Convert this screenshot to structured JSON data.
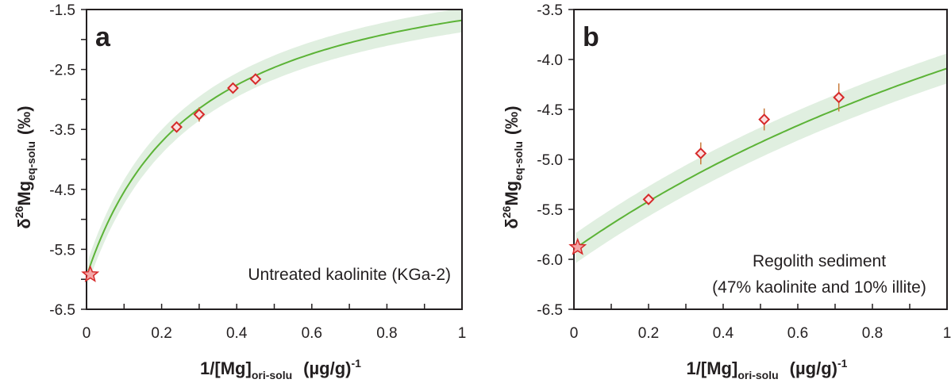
{
  "chart_data": [
    {
      "type": "scatter",
      "panel_label": "a",
      "annotation": [
        "Untreated kaolinite (KGa-2)"
      ],
      "xlabel": {
        "main": "1/[Mg]",
        "sub": "ori-solu",
        "unit": "(µg/g)",
        "sup": "-1"
      },
      "ylabel": {
        "prefix": "δ",
        "sup": "26",
        "main": "Mg",
        "sub": "eq-solu",
        "unit": "(‰)"
      },
      "xlim": [
        0,
        1
      ],
      "ylim": [
        -6.5,
        -1.5
      ],
      "xticks": [
        0,
        0.2,
        0.4,
        0.6,
        0.8,
        1
      ],
      "xtick_labels": [
        "0",
        "0.2",
        "0.4",
        "0.6",
        "0.8",
        "1"
      ],
      "xminor": [
        0.1,
        0.3,
        0.5,
        0.7,
        0.9
      ],
      "yticks": [
        -1.5,
        -2.5,
        -3.5,
        -4.5,
        -5.5,
        -6.5
      ],
      "ytick_labels": [
        "-1.5",
        "-2.5",
        "-3.5",
        "-4.5",
        "-5.5",
        "-6.5"
      ],
      "yminor": [
        -2.0,
        -3.0,
        -4.0,
        -5.0,
        -6.0
      ],
      "points": [
        {
          "x": 0.24,
          "y": -3.46,
          "err": 0.05
        },
        {
          "x": 0.3,
          "y": -3.25,
          "err": 0.12
        },
        {
          "x": 0.39,
          "y": -2.81,
          "err": 0.05
        },
        {
          "x": 0.45,
          "y": -2.66,
          "err": 0.05
        }
      ],
      "initial_point": {
        "x": 0.01,
        "y": -5.92,
        "marker": "star"
      },
      "fit_curve": {
        "form": "(a + b*x)/(1 + c*x)",
        "a": -5.95,
        "b": -1.49,
        "c": 3.43,
        "band_halfwidth": 0.2
      },
      "colors": {
        "point_edge": "#d62a2a",
        "point_fill": "#fbe0e0",
        "error_bar": "#c87a3a",
        "fit_line": "#5cb337",
        "band": "#e0efe0",
        "star_fill": "#f4a7a7",
        "star_edge": "#d62a2a"
      }
    },
    {
      "type": "scatter",
      "panel_label": "b",
      "annotation": [
        "Regolith sediment",
        "(47% kaolinite and 10% illite)"
      ],
      "xlabel": {
        "main": "1/[Mg]",
        "sub": "ori-solu",
        "unit": "(µg/g)",
        "sup": "-1"
      },
      "ylabel": {
        "prefix": "δ",
        "sup": "26",
        "main": "Mg",
        "sub": "eq-solu",
        "unit": "(‰)"
      },
      "xlim": [
        0,
        1
      ],
      "ylim": [
        -6.5,
        -3.5
      ],
      "xticks": [
        0,
        0.2,
        0.4,
        0.6,
        0.8,
        1
      ],
      "xtick_labels": [
        "0",
        "0.2",
        "0.4",
        "0.6",
        "0.8",
        "1"
      ],
      "xminor": [
        0.1,
        0.3,
        0.5,
        0.7,
        0.9
      ],
      "yticks": [
        -3.5,
        -4.0,
        -4.5,
        -5.0,
        -5.5,
        -6.0,
        -6.5
      ],
      "ytick_labels": [
        "-3.5",
        "-4.0",
        "-4.5",
        "-5.0",
        "-5.5",
        "-6.0",
        "-6.5"
      ],
      "yminor": [],
      "points": [
        {
          "x": 0.2,
          "y": -5.4,
          "err": 0.03
        },
        {
          "x": 0.34,
          "y": -4.94,
          "err": 0.11
        },
        {
          "x": 0.51,
          "y": -4.6,
          "err": 0.11
        },
        {
          "x": 0.71,
          "y": -4.38,
          "err": 0.14
        }
      ],
      "initial_point": {
        "x": 0.01,
        "y": -5.88,
        "marker": "star"
      },
      "fit_curve": {
        "form": "(a + b*x)/(1 + c*x)",
        "a": -5.9,
        "b": -0.005,
        "c": 0.444,
        "band_halfwidth": 0.15
      },
      "colors": {
        "point_edge": "#d62a2a",
        "point_fill": "#fbe0e0",
        "error_bar": "#c87a3a",
        "fit_line": "#5cb337",
        "band": "#e0efe0",
        "star_fill": "#f4a7a7",
        "star_edge": "#d62a2a"
      }
    }
  ]
}
